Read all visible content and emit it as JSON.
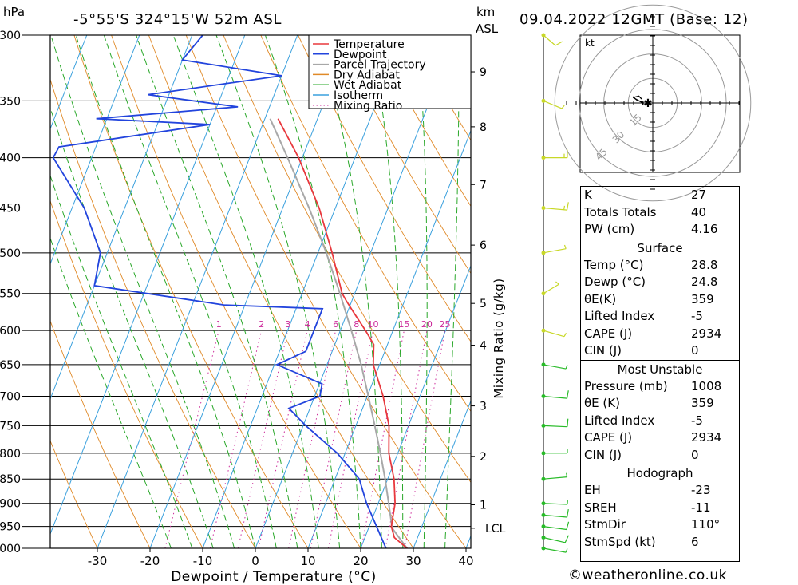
{
  "header": {
    "location": "-5°55'S  324°15'W  52m  ASL",
    "datetime": "09.04.2022  12GMT  (Base: 12)",
    "left_unit": "hPa",
    "right_unit_top": "km",
    "right_unit_bottom": "ASL"
  },
  "chart_data": {
    "type": "skew-t",
    "xlabel": "Dewpoint / Temperature (°C)",
    "ylabel_right": "Mixing Ratio (g/kg)",
    "pressure_ticks": [
      300,
      350,
      400,
      450,
      500,
      550,
      600,
      650,
      700,
      750,
      800,
      850,
      900,
      950,
      1000
    ],
    "temp_ticks": [
      -30,
      -20,
      -10,
      0,
      10,
      20,
      30,
      40
    ],
    "km_ticks": [
      {
        "label": "9",
        "p": 327
      },
      {
        "label": "8",
        "p": 372
      },
      {
        "label": "7",
        "p": 426
      },
      {
        "label": "6",
        "p": 491
      },
      {
        "label": "5",
        "p": 563
      },
      {
        "label": "4",
        "p": 621
      },
      {
        "label": "3",
        "p": 716
      },
      {
        "label": "2",
        "p": 806
      },
      {
        "label": "1",
        "p": 903
      },
      {
        "label": "LCL",
        "p": 954
      }
    ],
    "mixing_ratio_labels": [
      "1",
      "2",
      "3",
      "4",
      "6",
      "8",
      "10",
      "15",
      "20",
      "25"
    ],
    "mixing_ratio_values": [
      1,
      2,
      3,
      4,
      6,
      8,
      10,
      15,
      20,
      25
    ],
    "legend": [
      "Temperature",
      "Dewpoint",
      "Parcel Trajectory",
      "Dry Adiabat",
      "Wet Adiabat",
      "Isotherm",
      "Mixing Ratio"
    ],
    "colors": {
      "temperature": "#e8383d",
      "dewpoint": "#2244dd",
      "parcel": "#a8a8a8",
      "dry_adiabat": "#e08a28",
      "wet_adiabat": "#2aa82a",
      "isotherm": "#3aa0dd",
      "mixing_ratio": "#cc2a9a",
      "wind_low": "#28bb28",
      "wind_high": "#c8d828"
    },
    "temperature_profile": [
      {
        "p": 1000,
        "t": 28.8
      },
      {
        "p": 975,
        "t": 25.6
      },
      {
        "p": 950,
        "t": 24.2
      },
      {
        "p": 925,
        "t": 23.7
      },
      {
        "p": 900,
        "t": 23.2
      },
      {
        "p": 850,
        "t": 21.2
      },
      {
        "p": 800,
        "t": 18.3
      },
      {
        "p": 750,
        "t": 16.3
      },
      {
        "p": 700,
        "t": 13.0
      },
      {
        "p": 650,
        "t": 8.8
      },
      {
        "p": 620,
        "t": 7.4
      },
      {
        "p": 600,
        "t": 4.8
      },
      {
        "p": 575,
        "t": 1.2
      },
      {
        "p": 560,
        "t": -1.0
      },
      {
        "p": 550,
        "t": -2.4
      },
      {
        "p": 500,
        "t": -7.3
      },
      {
        "p": 450,
        "t": -13.1
      },
      {
        "p": 400,
        "t": -20.7
      },
      {
        "p": 365,
        "t": -27.5
      }
    ],
    "dewpoint_profile": [
      {
        "p": 1000,
        "t": 24.8
      },
      {
        "p": 950,
        "t": 21.4
      },
      {
        "p": 900,
        "t": 17.8
      },
      {
        "p": 850,
        "t": 14.6
      },
      {
        "p": 800,
        "t": 8.5
      },
      {
        "p": 750,
        "t": 0.5
      },
      {
        "p": 720,
        "t": -4.0
      },
      {
        "p": 700,
        "t": 1.0
      },
      {
        "p": 680,
        "t": 0.5
      },
      {
        "p": 650,
        "t": -9.5
      },
      {
        "p": 630,
        "t": -5.0
      },
      {
        "p": 570,
        "t": -5.0
      },
      {
        "p": 565,
        "t": -24.0
      },
      {
        "p": 540,
        "t": -50.0
      },
      {
        "p": 500,
        "t": -51.3
      },
      {
        "p": 450,
        "t": -57.7
      },
      {
        "p": 400,
        "t": -67.3
      },
      {
        "p": 390,
        "t": -67.0
      },
      {
        "p": 370,
        "t": -40.0
      },
      {
        "p": 365,
        "t": -62.0
      },
      {
        "p": 355,
        "t": -36.0
      },
      {
        "p": 345,
        "t": -54.0
      },
      {
        "p": 330,
        "t": -30.0
      },
      {
        "p": 318,
        "t": -50.0
      },
      {
        "p": 300,
        "t": -48.0
      }
    ],
    "parcel_profile": [
      {
        "p": 1000,
        "t": 28.8
      },
      {
        "p": 954,
        "t": 24.5
      },
      {
        "p": 900,
        "t": 22.0
      },
      {
        "p": 850,
        "t": 19.5
      },
      {
        "p": 800,
        "t": 16.7
      },
      {
        "p": 750,
        "t": 13.6
      },
      {
        "p": 700,
        "t": 10.2
      },
      {
        "p": 650,
        "t": 6.5
      },
      {
        "p": 600,
        "t": 2.1
      },
      {
        "p": 550,
        "t": -2.8
      },
      {
        "p": 500,
        "t": -8.4
      },
      {
        "p": 450,
        "t": -15.0
      },
      {
        "p": 400,
        "t": -22.8
      },
      {
        "p": 365,
        "t": -29.0
      }
    ],
    "wind_barbs": [
      {
        "p": 1000,
        "dir": 110,
        "kt": 6
      },
      {
        "p": 975,
        "dir": 115,
        "kt": 8
      },
      {
        "p": 950,
        "dir": 105,
        "kt": 10
      },
      {
        "p": 925,
        "dir": 100,
        "kt": 8
      },
      {
        "p": 900,
        "dir": 95,
        "kt": 5
      },
      {
        "p": 850,
        "dir": 80,
        "kt": 5
      },
      {
        "p": 800,
        "dir": 90,
        "kt": 5
      },
      {
        "p": 750,
        "dir": 95,
        "kt": 10
      },
      {
        "p": 700,
        "dir": 100,
        "kt": 10
      },
      {
        "p": 650,
        "dir": 110,
        "kt": 5
      },
      {
        "p": 600,
        "dir": 120,
        "kt": 5
      },
      {
        "p": 550,
        "dir": 40,
        "kt": 5
      },
      {
        "p": 500,
        "dir": 70,
        "kt": 5
      },
      {
        "p": 450,
        "dir": 100,
        "kt": 15
      },
      {
        "p": 400,
        "dir": 90,
        "kt": 15
      },
      {
        "p": 350,
        "dir": 130,
        "kt": 5
      },
      {
        "p": 300,
        "dir": 150,
        "kt": 10
      }
    ],
    "hodograph": {
      "unit": "kt",
      "ring_labels": [
        "15",
        "30",
        "45"
      ],
      "points": [
        {
          "u": -5.6,
          "v": 2.0
        },
        {
          "u": -7.0,
          "v": 3.5
        },
        {
          "u": -9.6,
          "v": 2.8
        },
        {
          "u": -7.9,
          "v": 1.4
        },
        {
          "u": -5.0,
          "v": 0.4
        },
        {
          "u": -4.9,
          "v": -0.9
        },
        {
          "u": -5.0,
          "v": 0.0
        },
        {
          "u": -9.7,
          "v": 2.6
        },
        {
          "u": -9.4,
          "v": 3.4
        }
      ]
    }
  },
  "indices": {
    "k_label": "K",
    "k": "27",
    "tt_label": "Totals Totals",
    "tt": "40",
    "pw_label": "PW (cm)",
    "pw": "4.16",
    "surface_title": "Surface",
    "s_temp_label": "Temp (°C)",
    "s_temp": "28.8",
    "s_dewp_label": "Dewp (°C)",
    "s_dewp": "24.8",
    "s_thetae_label": "θE(K)",
    "s_thetae": "359",
    "s_li_label": "Lifted Index",
    "s_li": "-5",
    "s_cape_label": "CAPE (J)",
    "s_cape": "2934",
    "s_cin_label": "CIN (J)",
    "s_cin": "0",
    "mu_title": "Most Unstable",
    "mu_p_label": "Pressure (mb)",
    "mu_p": "1008",
    "mu_thetae_label": "θE (K)",
    "mu_thetae": "359",
    "mu_li_label": "Lifted Index",
    "mu_li": "-5",
    "mu_cape_label": "CAPE (J)",
    "mu_cape": "2934",
    "mu_cin_label": "CIN (J)",
    "mu_cin": "0",
    "hodo_title": "Hodograph",
    "eh_label": "EH",
    "eh": "-23",
    "sreh_label": "SREH",
    "sreh": "-11",
    "stmdir_label": "StmDir",
    "stmdir": "110°",
    "stmspd_label": "StmSpd (kt)",
    "stmspd": "6"
  },
  "credit": "©weatheronline.co.uk"
}
